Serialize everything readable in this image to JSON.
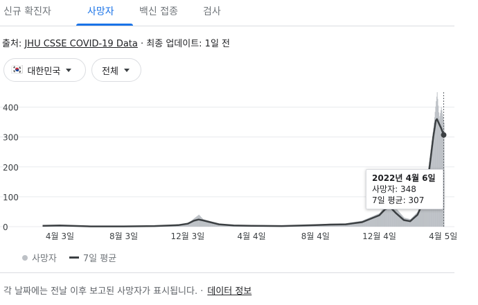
{
  "tabs": [
    {
      "label": "신규 확진자",
      "active": false
    },
    {
      "label": "사망자",
      "active": true
    },
    {
      "label": "백신 접종",
      "active": false
    },
    {
      "label": "검사",
      "active": false
    }
  ],
  "source": {
    "prefix": "출처:",
    "link": "JHU CSSE COVID-19 Data",
    "sep": " · ",
    "updated": "최종 업데이트: 1일 전"
  },
  "filters": {
    "country": "대한민국",
    "country_flag": "🇰🇷",
    "range": "전체"
  },
  "tooltip": {
    "date": "2022년 4월 6일",
    "deaths": "사망자: 348",
    "avg": "7일 평균: 307"
  },
  "legend": {
    "bars": "사망자",
    "line": "7일 평균"
  },
  "footer": {
    "note": "각 날짜에는 전날 이후 보고된 사망자가 표시됩니다. ·",
    "link": "데이터 정보"
  },
  "colors": {
    "accent": "#1a73e8",
    "bars": "#bdc1c6",
    "avg_line": "#3c4043",
    "grid": "#e8eaed"
  },
  "chart_data": {
    "type": "bar",
    "title": "",
    "xlabel": "",
    "ylabel": "",
    "ylim": [
      0,
      450
    ],
    "yticks": [
      0,
      100,
      200,
      300,
      400
    ],
    "xticks": [
      "4월 3일",
      "8월 3일",
      "12월 3일",
      "4월 4일",
      "8월 4일",
      "12월 4일",
      "4월 5일"
    ],
    "grid": true,
    "legend_position": "bottom-left",
    "series": [
      {
        "name": "사망자",
        "kind": "bar",
        "points": [
          {
            "x": "2020-03-01",
            "y": 4
          },
          {
            "x": "2020-04-03",
            "y": 5
          },
          {
            "x": "2020-06-01",
            "y": 2
          },
          {
            "x": "2020-08-03",
            "y": 1
          },
          {
            "x": "2020-10-01",
            "y": 2
          },
          {
            "x": "2020-11-15",
            "y": 5
          },
          {
            "x": "2020-12-03",
            "y": 10
          },
          {
            "x": "2020-12-15",
            "y": 28
          },
          {
            "x": "2020-12-24",
            "y": 40
          },
          {
            "x": "2021-01-01",
            "y": 25
          },
          {
            "x": "2021-01-15",
            "y": 18
          },
          {
            "x": "2021-02-01",
            "y": 10
          },
          {
            "x": "2021-03-01",
            "y": 5
          },
          {
            "x": "2021-04-04",
            "y": 4
          },
          {
            "x": "2021-06-01",
            "y": 3
          },
          {
            "x": "2021-08-04",
            "y": 7
          },
          {
            "x": "2021-09-01",
            "y": 10
          },
          {
            "x": "2021-10-01",
            "y": 11
          },
          {
            "x": "2021-11-01",
            "y": 20
          },
          {
            "x": "2021-12-04",
            "y": 45
          },
          {
            "x": "2021-12-15",
            "y": 70
          },
          {
            "x": "2021-12-25",
            "y": 110
          },
          {
            "x": "2022-01-05",
            "y": 60
          },
          {
            "x": "2022-01-20",
            "y": 30
          },
          {
            "x": "2022-02-01",
            "y": 25
          },
          {
            "x": "2022-02-15",
            "y": 50
          },
          {
            "x": "2022-03-01",
            "y": 110
          },
          {
            "x": "2022-03-10",
            "y": 230
          },
          {
            "x": "2022-03-17",
            "y": 330
          },
          {
            "x": "2022-03-22",
            "y": 420
          },
          {
            "x": "2022-03-24",
            "y": 450
          },
          {
            "x": "2022-03-28",
            "y": 360
          },
          {
            "x": "2022-04-01",
            "y": 400
          },
          {
            "x": "2022-04-06",
            "y": 348
          }
        ]
      },
      {
        "name": "7일 평균",
        "kind": "line",
        "points": [
          {
            "x": "2020-03-01",
            "y": 3
          },
          {
            "x": "2020-04-03",
            "y": 4
          },
          {
            "x": "2020-06-01",
            "y": 1
          },
          {
            "x": "2020-08-03",
            "y": 1
          },
          {
            "x": "2020-10-01",
            "y": 2
          },
          {
            "x": "2020-11-15",
            "y": 5
          },
          {
            "x": "2020-12-03",
            "y": 10
          },
          {
            "x": "2020-12-15",
            "y": 20
          },
          {
            "x": "2020-12-24",
            "y": 24
          },
          {
            "x": "2021-01-01",
            "y": 21
          },
          {
            "x": "2021-01-15",
            "y": 15
          },
          {
            "x": "2021-02-01",
            "y": 8
          },
          {
            "x": "2021-03-01",
            "y": 4
          },
          {
            "x": "2021-04-04",
            "y": 3
          },
          {
            "x": "2021-06-01",
            "y": 2
          },
          {
            "x": "2021-08-04",
            "y": 5
          },
          {
            "x": "2021-09-01",
            "y": 7
          },
          {
            "x": "2021-10-01",
            "y": 8
          },
          {
            "x": "2021-11-01",
            "y": 15
          },
          {
            "x": "2021-12-04",
            "y": 38
          },
          {
            "x": "2021-12-15",
            "y": 58
          },
          {
            "x": "2021-12-25",
            "y": 65
          },
          {
            "x": "2022-01-05",
            "y": 45
          },
          {
            "x": "2022-01-20",
            "y": 22
          },
          {
            "x": "2022-02-01",
            "y": 18
          },
          {
            "x": "2022-02-15",
            "y": 40
          },
          {
            "x": "2022-03-01",
            "y": 95
          },
          {
            "x": "2022-03-10",
            "y": 200
          },
          {
            "x": "2022-03-17",
            "y": 300
          },
          {
            "x": "2022-03-22",
            "y": 355
          },
          {
            "x": "2022-03-24",
            "y": 360
          },
          {
            "x": "2022-03-28",
            "y": 345
          },
          {
            "x": "2022-04-01",
            "y": 330
          },
          {
            "x": "2022-04-06",
            "y": 307
          }
        ]
      }
    ],
    "hover": {
      "x": "2022-04-06",
      "deaths": 348,
      "avg": 307
    }
  }
}
